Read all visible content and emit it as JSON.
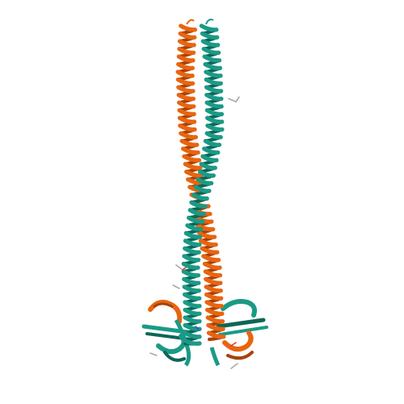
{
  "image": {
    "subject": "protein-ribbon-cartoon",
    "background_color": "#ffffff"
  },
  "chains": [
    {
      "id": "chain-a",
      "color": "#e8650f",
      "shade": "#a8420a"
    },
    {
      "id": "chain-b",
      "color": "#1a9a86",
      "shade": "#0d6657"
    }
  ],
  "ligand_colors": {
    "carbon": "#a9a9a9",
    "oxygen": "#e03a2f",
    "nitrogen": "#3a4fd0"
  }
}
